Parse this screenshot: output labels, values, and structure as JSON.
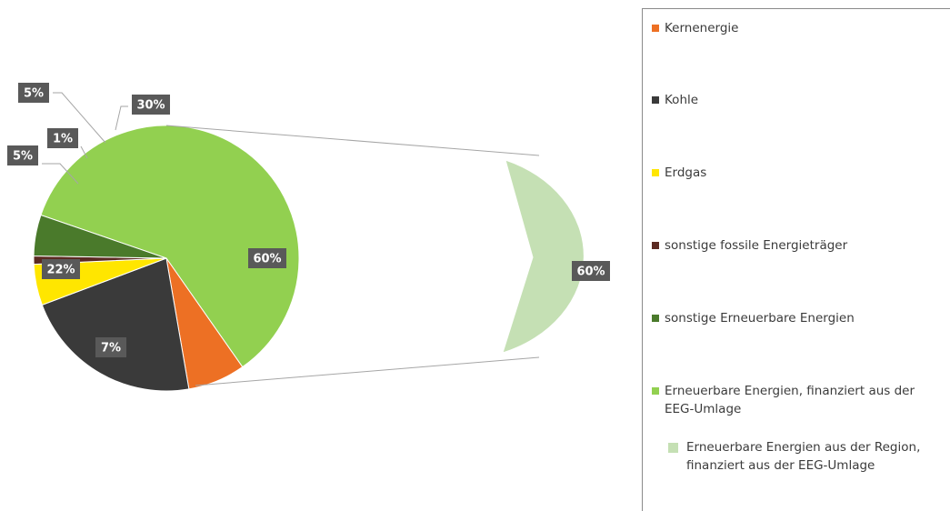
{
  "chart_data": {
    "type": "pie",
    "subtype": "bar-of-pie",
    "title": "",
    "slices": [
      {
        "name": "Kernenergie",
        "value": 7,
        "label": "7%",
        "color": "#ED7024"
      },
      {
        "name": "Kohle",
        "value": 22,
        "label": "22%",
        "color": "#3A3A3A"
      },
      {
        "name": "Erdgas",
        "value": 5,
        "label": "5%",
        "color": "#FFE600"
      },
      {
        "name": "sonstige fossile Energieträger",
        "value": 1,
        "label": "1%",
        "color": "#5B2A22"
      },
      {
        "name": "sonstige Erneuerbare Energien",
        "value": 5,
        "label": "5%",
        "color": "#4A7A2B"
      },
      {
        "name": "Erneuerbare Energien, finanziert aus der EEG-Umlage",
        "value": 60,
        "label": "60%",
        "color": "#92D050"
      },
      {
        "name": "Erneuerbare Energien aus der Region, finanziert aus der EEG-Umlage",
        "value": 30,
        "label": "30%",
        "color": "#C5E0B4"
      }
    ],
    "secondary": {
      "value": 60,
      "label": "60%"
    },
    "legend_position": "right"
  },
  "legend": {
    "items": [
      {
        "label": "Kernenergie",
        "color": "#ED7024"
      },
      {
        "label": "Kohle",
        "color": "#3A3A3A"
      },
      {
        "label": "Erdgas",
        "color": "#FFE600"
      },
      {
        "label": "sonstige fossile Energieträger",
        "color": "#5B2A22"
      },
      {
        "label": "sonstige Erneuerbare Energien",
        "color": "#4A7A2B"
      },
      {
        "label": "Erneuerbare Energien, finanziert aus der EEG-Umlage",
        "color": "#92D050"
      },
      {
        "label": "Erneuerbare Energien aus der Region, finanziert aus der EEG-Umlage",
        "color": "#C5E0B4"
      }
    ]
  }
}
